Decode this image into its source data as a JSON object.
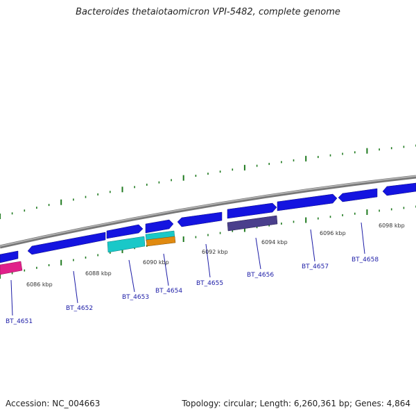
{
  "title": "Bacteroides thetaiotaomicron VPI-5482, complete genome",
  "accession_text": "Accession: NC_004663",
  "stats_text": "Topology: circular; Length: 6,260,361 bp; Genes: 4,864",
  "colors": {
    "backbone": "#8a8a8a",
    "tick": "#1f7a1f",
    "gene_forward": "#1414e0",
    "gene_reverse": "#1414e0",
    "gene_cyan": "#19c8c8",
    "gene_orange": "#e08a10",
    "gene_purple": "#4a3f8c",
    "gene_pink": "#e0208a",
    "label": "#1a1aa6"
  },
  "scale_labels": [
    "6086 kbp",
    "6088 kbp",
    "6090 kbp",
    "6092 kbp",
    "6094 kbp",
    "6096 kbp",
    "6098 kbp"
  ],
  "gene_labels": [
    "BT_4651",
    "BT_4652",
    "BT_4653",
    "BT_4654",
    "BT_4655",
    "BT_4656",
    "BT_4657",
    "BT_4658"
  ]
}
